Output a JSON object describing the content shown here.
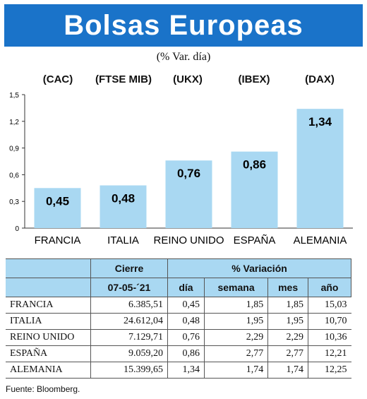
{
  "title": "Bolsas Europeas",
  "subtitle": "(% Var. día)",
  "indices": [
    "(CAC)",
    "(FTSE MIB)",
    "(UKX)",
    "(IBEX)",
    "(DAX)"
  ],
  "chart_data": {
    "type": "bar",
    "categories": [
      "FRANCIA",
      "ITALIA",
      "REINO UNIDO",
      "ESPAÑA",
      "ALEMANIA"
    ],
    "values": [
      0.45,
      0.48,
      0.76,
      0.86,
      1.34
    ],
    "value_labels": [
      "0,45",
      "0,48",
      "0,76",
      "0,86",
      "1,34"
    ],
    "ylim": [
      0,
      1.5
    ],
    "yticks": [
      0,
      0.3,
      0.6,
      0.9,
      1.2,
      1.5
    ],
    "ytick_labels": [
      "0",
      "0,3",
      "0,6",
      "0,9",
      "1,2",
      "1,5"
    ],
    "grid": false,
    "colors": {
      "bar": "#a9d8f2",
      "title_bg": "#1a73c9"
    }
  },
  "table": {
    "header_group": {
      "cierre": "Cierre",
      "variacion": "% Variación"
    },
    "columns": [
      "07-05-´21",
      "día",
      "semana",
      "mes",
      "año"
    ],
    "rows": [
      {
        "name": "FRANCIA",
        "cierre": "6.385,51",
        "dia": "0,45",
        "semana": "1,85",
        "mes": "1,85",
        "ano": "15,03"
      },
      {
        "name": "ITALIA",
        "cierre": "24.612,04",
        "dia": "0,48",
        "semana": "1,95",
        "mes": "1,95",
        "ano": "10,70"
      },
      {
        "name": "REINO UNIDO",
        "cierre": "7.129,71",
        "dia": "0,76",
        "semana": "2,29",
        "mes": "2,29",
        "ano": "10,36"
      },
      {
        "name": "ESPAÑA",
        "cierre": "9.059,20",
        "dia": "0,86",
        "semana": "2,77",
        "mes": "2,77",
        "ano": "12,21"
      },
      {
        "name": "ALEMANIA",
        "cierre": "15.399,65",
        "dia": "1,34",
        "semana": "1,74",
        "mes": "1,74",
        "ano": "12,25"
      }
    ]
  },
  "footer": "Fuente: Bloomberg."
}
